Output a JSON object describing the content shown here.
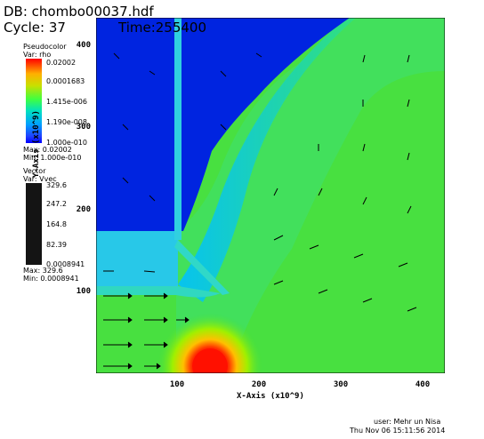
{
  "header": {
    "db": "DB: chombo00037.hdf",
    "cycle": "Cycle: 37",
    "time": "Time:255400"
  },
  "pseudocolor": {
    "title": "Pseudocolor",
    "var": "Var: rho",
    "ticks": [
      "0.02002",
      "0.0001683",
      "1.415e-006",
      "1.190e-008",
      "1.000e-010"
    ],
    "max": "Max: 0.02002",
    "min": "Min: 1.000e-010"
  },
  "vector": {
    "title": "Vector",
    "var": "Var: Vvec",
    "ticks": [
      "329.6",
      "247.2",
      "164.8",
      "82.39",
      "0.0008941"
    ],
    "max": "Max: 329.6",
    "min": "Min: 0.0008941"
  },
  "axes": {
    "xlabel": "X-Axis (x10^9)",
    "ylabel": "Y-Axis (x10^9)",
    "xticks": [
      "100",
      "200",
      "300",
      "400"
    ],
    "yticks": [
      "100",
      "200",
      "300",
      "400"
    ]
  },
  "footer": {
    "user": "user: Mehr un Nisa",
    "date": "Thu Nov 06 15:11:56 2014"
  },
  "colors": {
    "background_low": "#0020e0",
    "background_mid": "#40e040",
    "hot": "#ff1000"
  }
}
